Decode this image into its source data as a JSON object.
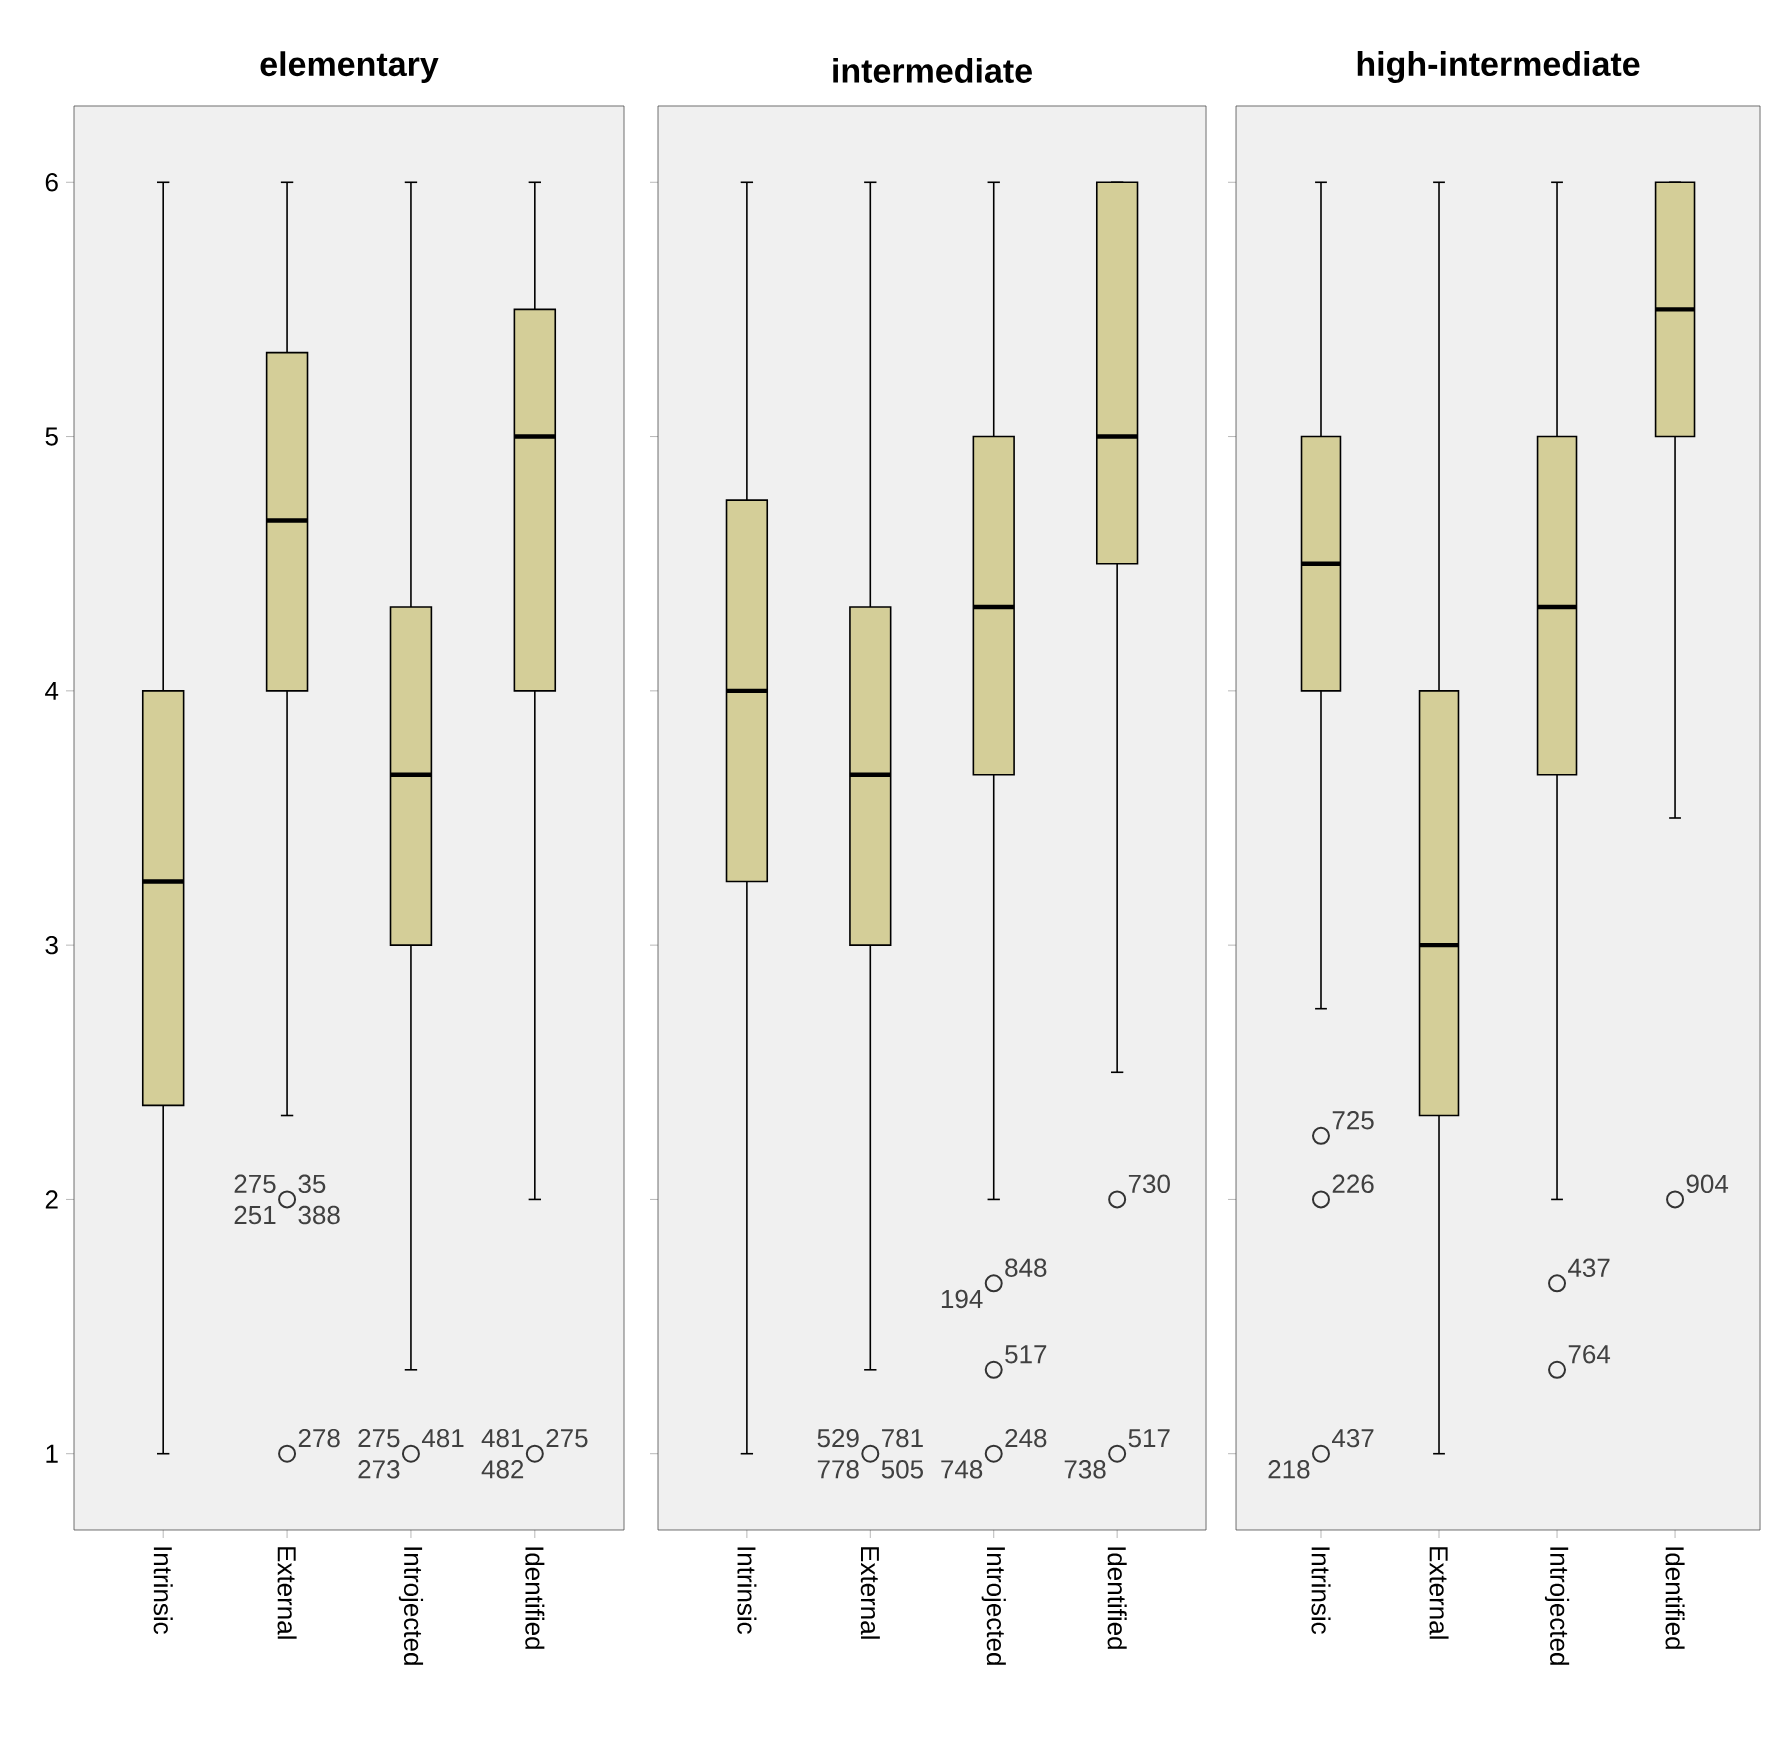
{
  "chart_data": [
    {
      "type": "box",
      "title": "elementary",
      "categories": [
        "Intrinsic",
        "External",
        "Introjected",
        "Identified"
      ],
      "color": "#d4ce98",
      "ylim": [
        0.7,
        6.3
      ],
      "yticks": [
        1,
        2,
        3,
        4,
        5,
        6
      ],
      "boxes": [
        {
          "low": 1,
          "q1": 2.37,
          "median": 3.25,
          "q3": 4,
          "high": 6
        },
        {
          "low": 2.33,
          "q1": 4,
          "median": 4.67,
          "q3": 5.33,
          "high": 6,
          "outliers": [
            2,
            1
          ]
        },
        {
          "low": 1.33,
          "q1": 3,
          "median": 3.67,
          "q3": 4.33,
          "high": 6,
          "outliers": [
            1
          ]
        },
        {
          "low": 2,
          "q1": 4,
          "median": 5,
          "q3": 5.5,
          "high": 6,
          "outliers": [
            1
          ]
        }
      ],
      "annotations": [
        "35",
        "251",
        "275",
        "388",
        "278",
        "481",
        "273",
        "275",
        "275",
        "482",
        "481"
      ]
    },
    {
      "type": "box",
      "title": "intermediate",
      "categories": [
        "Intrinsic",
        "External",
        "Introjected",
        "Identified"
      ],
      "color": "#d4ce98",
      "ylim": [
        0.7,
        6.3
      ],
      "yticks": [
        1,
        2,
        3,
        4,
        5,
        6
      ],
      "tick_labels": "x",
      "boxes": [
        {
          "low": 1,
          "q1": 3.25,
          "median": 4,
          "q3": 4.75,
          "high": 6
        },
        {
          "low": 1.33,
          "q1": 3,
          "median": 3.67,
          "q3": 4.33,
          "high": 6,
          "outliers": [
            1
          ]
        },
        {
          "low": 2,
          "q1": 3.67,
          "median": 4.33,
          "q3": 5,
          "high": 6,
          "outliers": [
            1.67,
            1.33,
            1
          ]
        },
        {
          "low": 2.5,
          "q1": 4.5,
          "median": 5,
          "q3": 6,
          "high": 6,
          "outliers": [
            2,
            1
          ]
        }
      ],
      "annotations": [
        "781",
        "778",
        "529",
        "505",
        "848",
        "194",
        "517",
        "248",
        "748",
        "730",
        "517",
        "738"
      ]
    },
    {
      "type": "box",
      "title": "high-intermediate",
      "categories": [
        "Intrinsic",
        "External",
        "Introjected",
        "Identified"
      ],
      "color": "#d4ce98",
      "ylim": [
        0.7,
        6.3
      ],
      "yticks": [
        1,
        2,
        3,
        4,
        5,
        6
      ],
      "tick_labels": "x",
      "boxes": [
        {
          "low": 2.75,
          "q1": 4,
          "median": 4.5,
          "q3": 5,
          "high": 6,
          "outliers": [
            2.25,
            2,
            1
          ]
        },
        {
          "low": 1,
          "q1": 2.33,
          "median": 3,
          "q3": 4,
          "high": 6
        },
        {
          "low": 2,
          "q1": 3.67,
          "median": 4.33,
          "q3": 5,
          "high": 6,
          "outliers": [
            1.67,
            1.33
          ]
        },
        {
          "low": 3.5,
          "q1": 5,
          "median": 5.5,
          "q3": 6,
          "high": 6,
          "outliers": [
            2
          ]
        }
      ],
      "annotations": [
        "725",
        "226",
        "437",
        "218",
        "437",
        "764",
        "904"
      ]
    }
  ]
}
